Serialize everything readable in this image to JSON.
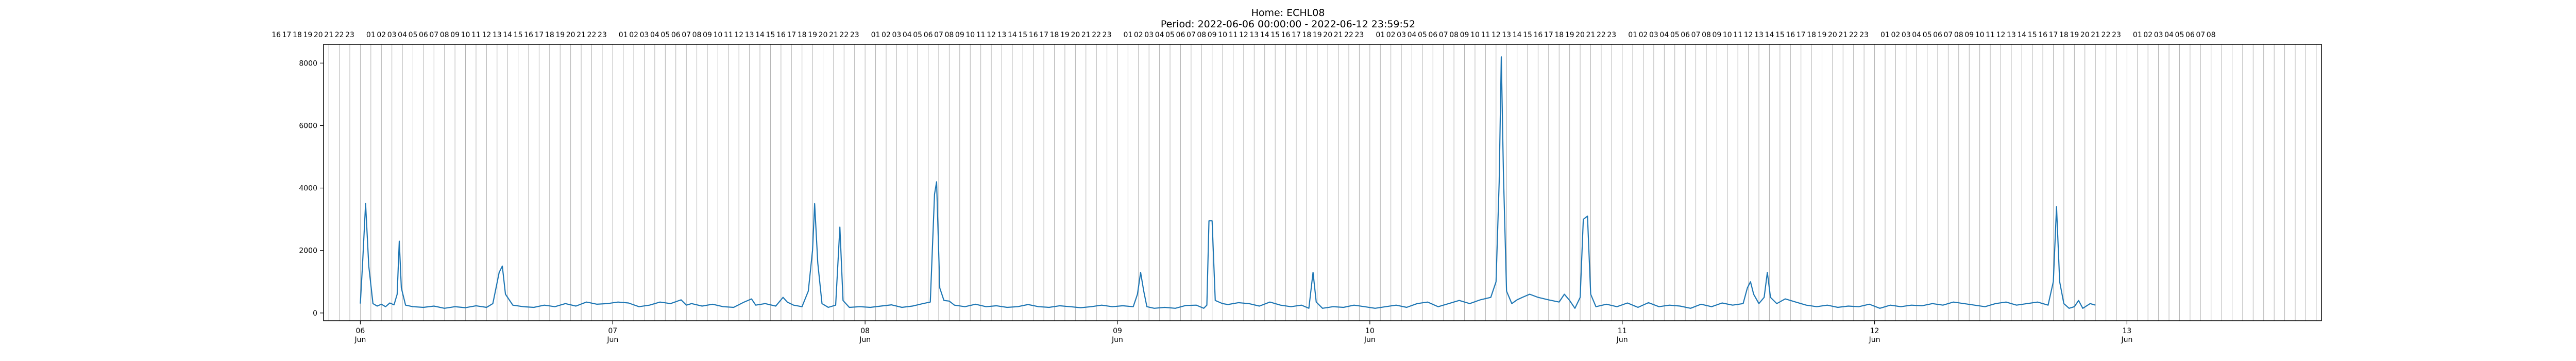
{
  "chart_data": {
    "type": "line",
    "title": "Home: ECHL08",
    "subtitle": "Period: 2022-06-06 00:00:00 - 2022-06-12 23:59:52",
    "xlabel": "",
    "ylabel": "",
    "x_range_hours": [
      -3.5,
      186.5
    ],
    "ylim": [
      -250,
      8600
    ],
    "yticks": [
      0,
      2000,
      4000,
      6000,
      8000
    ],
    "xticks": [
      {
        "hour": 0,
        "label": "06",
        "sub": "Jun"
      },
      {
        "hour": 24,
        "label": "07",
        "sub": "Jun"
      },
      {
        "hour": 48,
        "label": "08",
        "sub": "Jun"
      },
      {
        "hour": 72,
        "label": "09",
        "sub": "Jun"
      },
      {
        "hour": 96,
        "label": "10",
        "sub": "Jun"
      },
      {
        "hour": 120,
        "label": "11",
        "sub": "Jun"
      },
      {
        "hour": 144,
        "label": "12",
        "sub": "Jun"
      },
      {
        "hour": 168,
        "label": "13",
        "sub": "Jun"
      }
    ],
    "top_axis": {
      "start_hour": -8,
      "end_hour": 188,
      "hour_labels_first": [
        "16",
        "17",
        "18",
        "19",
        "20",
        "21",
        "22",
        "23"
      ],
      "day_hour_labels": [
        "01",
        "02",
        "03",
        "04",
        "05",
        "06",
        "07",
        "08",
        "09",
        "10",
        "11",
        "12",
        "13",
        "14",
        "15",
        "16",
        "17",
        "18",
        "19",
        "20",
        "21",
        "22",
        "23"
      ],
      "tail_labels": [
        "01",
        "02",
        "03",
        "04",
        "05",
        "06",
        "07",
        "08"
      ]
    },
    "grid": "vertical-hourly",
    "series": [
      {
        "color": "#1f77b4",
        "points": [
          [
            0,
            300
          ],
          [
            0.2,
            1500
          ],
          [
            0.5,
            3500
          ],
          [
            0.8,
            1500
          ],
          [
            1.2,
            300
          ],
          [
            1.6,
            220
          ],
          [
            2,
            280
          ],
          [
            2.4,
            200
          ],
          [
            2.8,
            320
          ],
          [
            3.2,
            260
          ],
          [
            3.5,
            600
          ],
          [
            3.7,
            2300
          ],
          [
            3.9,
            800
          ],
          [
            4.3,
            250
          ],
          [
            5,
            200
          ],
          [
            6,
            180
          ],
          [
            7,
            220
          ],
          [
            8,
            150
          ],
          [
            9,
            200
          ],
          [
            10,
            170
          ],
          [
            11,
            230
          ],
          [
            12,
            180
          ],
          [
            12.6,
            300
          ],
          [
            13.2,
            1300
          ],
          [
            13.5,
            1500
          ],
          [
            13.8,
            600
          ],
          [
            14.5,
            250
          ],
          [
            15.5,
            200
          ],
          [
            16.5,
            180
          ],
          [
            17.5,
            250
          ],
          [
            18.5,
            200
          ],
          [
            19.5,
            300
          ],
          [
            20.5,
            220
          ],
          [
            21.5,
            350
          ],
          [
            22.5,
            280
          ],
          [
            23.5,
            300
          ],
          [
            24.5,
            350
          ],
          [
            25.5,
            320
          ],
          [
            26.5,
            200
          ],
          [
            27.5,
            250
          ],
          [
            28.5,
            350
          ],
          [
            29.5,
            300
          ],
          [
            30.5,
            420
          ],
          [
            31,
            250
          ],
          [
            31.5,
            300
          ],
          [
            32.5,
            220
          ],
          [
            33.5,
            280
          ],
          [
            34.5,
            200
          ],
          [
            35.5,
            180
          ],
          [
            36.5,
            350
          ],
          [
            37.2,
            450
          ],
          [
            37.6,
            250
          ],
          [
            38.5,
            300
          ],
          [
            39.5,
            220
          ],
          [
            40.2,
            500
          ],
          [
            40.6,
            350
          ],
          [
            41.2,
            250
          ],
          [
            42,
            200
          ],
          [
            42.6,
            700
          ],
          [
            43,
            2000
          ],
          [
            43.2,
            3500
          ],
          [
            43.5,
            1600
          ],
          [
            43.9,
            300
          ],
          [
            44.5,
            180
          ],
          [
            45.2,
            250
          ],
          [
            45.6,
            2750
          ],
          [
            45.9,
            400
          ],
          [
            46.5,
            180
          ],
          [
            47.5,
            200
          ],
          [
            48.5,
            180
          ],
          [
            49.5,
            220
          ],
          [
            50.5,
            260
          ],
          [
            51.5,
            180
          ],
          [
            52.5,
            220
          ],
          [
            53.5,
            300
          ],
          [
            54.2,
            350
          ],
          [
            54.6,
            3800
          ],
          [
            54.8,
            4200
          ],
          [
            55.1,
            800
          ],
          [
            55.5,
            400
          ],
          [
            56,
            380
          ],
          [
            56.5,
            250
          ],
          [
            57.5,
            200
          ],
          [
            58.5,
            280
          ],
          [
            59.5,
            200
          ],
          [
            60.5,
            230
          ],
          [
            61.5,
            180
          ],
          [
            62.5,
            200
          ],
          [
            63.5,
            270
          ],
          [
            64.5,
            200
          ],
          [
            65.5,
            180
          ],
          [
            66.5,
            230
          ],
          [
            67.5,
            200
          ],
          [
            68.5,
            170
          ],
          [
            69.5,
            200
          ],
          [
            70.5,
            250
          ],
          [
            71.5,
            200
          ],
          [
            72.5,
            230
          ],
          [
            73.5,
            200
          ],
          [
            73.9,
            600
          ],
          [
            74.2,
            1300
          ],
          [
            74.5,
            700
          ],
          [
            74.8,
            200
          ],
          [
            75.5,
            150
          ],
          [
            76.5,
            180
          ],
          [
            77.5,
            150
          ],
          [
            78.5,
            240
          ],
          [
            79.5,
            250
          ],
          [
            80.2,
            150
          ],
          [
            80.5,
            250
          ],
          [
            80.7,
            2950
          ],
          [
            81,
            2950
          ],
          [
            81.3,
            400
          ],
          [
            82,
            300
          ],
          [
            82.5,
            270
          ],
          [
            83.5,
            330
          ],
          [
            84.5,
            300
          ],
          [
            85.5,
            220
          ],
          [
            86.5,
            350
          ],
          [
            87.5,
            250
          ],
          [
            88.5,
            200
          ],
          [
            89.5,
            250
          ],
          [
            90.2,
            150
          ],
          [
            90.6,
            1300
          ],
          [
            90.9,
            350
          ],
          [
            91.5,
            150
          ],
          [
            92.5,
            200
          ],
          [
            93.5,
            180
          ],
          [
            94.5,
            250
          ],
          [
            95.5,
            200
          ],
          [
            96.5,
            150
          ],
          [
            97.5,
            200
          ],
          [
            98.5,
            250
          ],
          [
            99.5,
            180
          ],
          [
            100.5,
            300
          ],
          [
            101.5,
            350
          ],
          [
            102.5,
            200
          ],
          [
            103.5,
            300
          ],
          [
            104.5,
            400
          ],
          [
            105.5,
            300
          ],
          [
            106.5,
            420
          ],
          [
            107.5,
            500
          ],
          [
            108,
            1000
          ],
          [
            108.3,
            4200
          ],
          [
            108.5,
            8200
          ],
          [
            108.7,
            4500
          ],
          [
            109,
            700
          ],
          [
            109.5,
            300
          ],
          [
            110,
            420
          ],
          [
            110.5,
            500
          ],
          [
            111.2,
            600
          ],
          [
            112,
            500
          ],
          [
            113,
            420
          ],
          [
            114,
            350
          ],
          [
            114.5,
            600
          ],
          [
            115,
            400
          ],
          [
            115.5,
            150
          ],
          [
            116,
            500
          ],
          [
            116.3,
            3000
          ],
          [
            116.7,
            3100
          ],
          [
            117,
            600
          ],
          [
            117.5,
            200
          ],
          [
            118.5,
            280
          ],
          [
            119.5,
            200
          ],
          [
            120.5,
            320
          ],
          [
            121.5,
            180
          ],
          [
            122.5,
            330
          ],
          [
            123.5,
            200
          ],
          [
            124.5,
            250
          ],
          [
            125.5,
            220
          ],
          [
            126.5,
            150
          ],
          [
            127.5,
            280
          ],
          [
            128.5,
            200
          ],
          [
            129.5,
            320
          ],
          [
            130.5,
            250
          ],
          [
            131.5,
            300
          ],
          [
            131.9,
            800
          ],
          [
            132.2,
            1000
          ],
          [
            132.5,
            600
          ],
          [
            133,
            300
          ],
          [
            133.5,
            500
          ],
          [
            133.8,
            1300
          ],
          [
            134.1,
            500
          ],
          [
            134.7,
            300
          ],
          [
            135.5,
            450
          ],
          [
            136.5,
            350
          ],
          [
            137.5,
            250
          ],
          [
            138.5,
            200
          ],
          [
            139.5,
            250
          ],
          [
            140.5,
            180
          ],
          [
            141.5,
            220
          ],
          [
            142.5,
            200
          ],
          [
            143.5,
            280
          ],
          [
            144.5,
            150
          ],
          [
            145.5,
            250
          ],
          [
            146.5,
            200
          ],
          [
            147.5,
            250
          ],
          [
            148.5,
            230
          ],
          [
            149.5,
            300
          ],
          [
            150.5,
            250
          ],
          [
            151.5,
            350
          ],
          [
            152.5,
            300
          ],
          [
            153.5,
            250
          ],
          [
            154.5,
            200
          ],
          [
            155.5,
            300
          ],
          [
            156.5,
            350
          ],
          [
            157.5,
            250
          ],
          [
            158.5,
            300
          ],
          [
            159.5,
            350
          ],
          [
            160.5,
            250
          ],
          [
            161,
            1000
          ],
          [
            161.3,
            3400
          ],
          [
            161.6,
            1000
          ],
          [
            162,
            300
          ],
          [
            162.5,
            150
          ],
          [
            163,
            200
          ],
          [
            163.4,
            400
          ],
          [
            163.8,
            150
          ],
          [
            164.5,
            300
          ],
          [
            165,
            250
          ]
        ]
      }
    ]
  }
}
